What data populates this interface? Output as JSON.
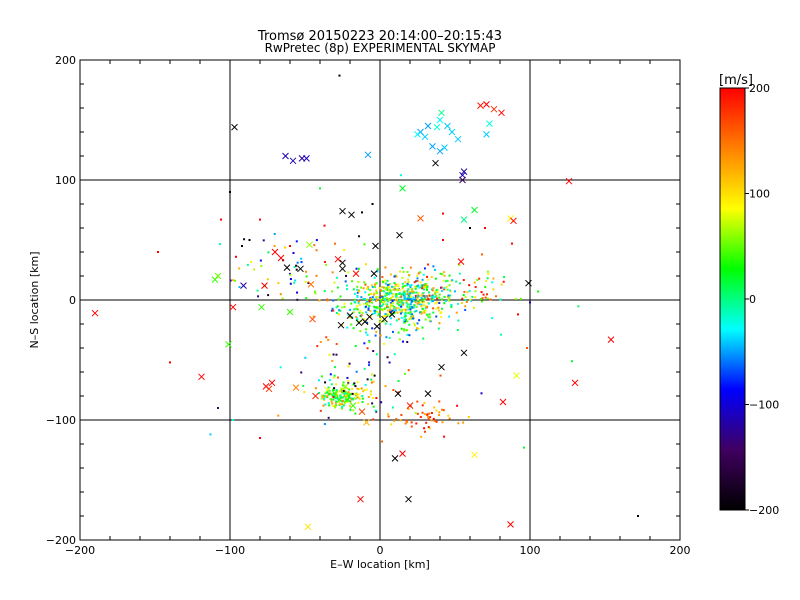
{
  "chart_data": {
    "type": "scatter",
    "title": "Tromsø 20150223 20:14:00–20:15:43",
    "subtitle": "RwPretec (8p) EXPERIMENTAL SKYMAP",
    "xlabel": "E–W location [km]",
    "ylabel": "N–S location [km]",
    "xlim": [
      -200,
      200
    ],
    "ylim": [
      -200,
      200
    ],
    "x_ticks": [
      -200,
      -100,
      0,
      100,
      200
    ],
    "y_ticks": [
      -200,
      -100,
      0,
      100,
      200
    ],
    "x_tick_labels": [
      "−200",
      "−100",
      "0",
      "100",
      "200"
    ],
    "y_tick_labels": [
      "−200",
      "−100",
      "0",
      "100",
      "200"
    ],
    "grid": true,
    "colorbar": {
      "label": "[m/s]",
      "range": [
        -200,
        200
      ],
      "ticks": [
        200,
        100,
        0,
        -100,
        -200
      ],
      "tick_labels": [
        "200",
        "100",
        "0",
        "−100",
        "−200"
      ],
      "colormap": [
        "#000000",
        "#400060",
        "#0000ff",
        "#00ffff",
        "#00ff00",
        "#ffff00",
        "#ff8000",
        "#ff0000"
      ]
    },
    "crosses": [
      {
        "x": -97,
        "y": 144,
        "v": -200
      },
      {
        "x": -63,
        "y": 120,
        "v": -110
      },
      {
        "x": -58,
        "y": 116,
        "v": -110
      },
      {
        "x": -52,
        "y": 118,
        "v": -120
      },
      {
        "x": -49,
        "y": 118,
        "v": -110
      },
      {
        "x": -8,
        "y": 121,
        "v": -50
      },
      {
        "x": 37,
        "y": 114,
        "v": -200
      },
      {
        "x": 56,
        "y": 107,
        "v": -120
      },
      {
        "x": 55,
        "y": 104,
        "v": -110
      },
      {
        "x": 55,
        "y": 100,
        "v": -140
      },
      {
        "x": 27,
        "y": 140,
        "v": -50
      },
      {
        "x": 32,
        "y": 145,
        "v": -50
      },
      {
        "x": 30,
        "y": 136,
        "v": -40
      },
      {
        "x": 25,
        "y": 138,
        "v": -30
      },
      {
        "x": 40,
        "y": 150,
        "v": -30
      },
      {
        "x": 41,
        "y": 156,
        "v": 0
      },
      {
        "x": 38,
        "y": 144,
        "v": -20
      },
      {
        "x": 45,
        "y": 145,
        "v": -40
      },
      {
        "x": 48,
        "y": 140,
        "v": -40
      },
      {
        "x": 52,
        "y": 134,
        "v": -40
      },
      {
        "x": 35,
        "y": 128,
        "v": -50
      },
      {
        "x": 40,
        "y": 124,
        "v": -50
      },
      {
        "x": 43,
        "y": 127,
        "v": -40
      },
      {
        "x": 67,
        "y": 162,
        "v": 190
      },
      {
        "x": 71,
        "y": 163,
        "v": 200
      },
      {
        "x": 76,
        "y": 159,
        "v": 180
      },
      {
        "x": 81,
        "y": 156,
        "v": 200
      },
      {
        "x": 73,
        "y": 147,
        "v": -20
      },
      {
        "x": 71,
        "y": 138,
        "v": -40
      },
      {
        "x": 126,
        "y": 99,
        "v": 200
      },
      {
        "x": 15,
        "y": 93,
        "v": 20
      },
      {
        "x": 63,
        "y": 75,
        "v": 20
      },
      {
        "x": 56,
        "y": 67,
        "v": 0
      },
      {
        "x": 87,
        "y": 68,
        "v": 90
      },
      {
        "x": 89,
        "y": 66,
        "v": 200
      },
      {
        "x": -25,
        "y": 74,
        "v": -200
      },
      {
        "x": -19,
        "y": 71,
        "v": -200
      },
      {
        "x": 13,
        "y": 54,
        "v": -200
      },
      {
        "x": 27,
        "y": 68,
        "v": 160
      },
      {
        "x": -47,
        "y": 46,
        "v": 60
      },
      {
        "x": -70,
        "y": 40,
        "v": 200
      },
      {
        "x": -66,
        "y": 35,
        "v": 200
      },
      {
        "x": -28,
        "y": 34,
        "v": 200
      },
      {
        "x": -25,
        "y": 31,
        "v": -200
      },
      {
        "x": -3,
        "y": 45,
        "v": -200
      },
      {
        "x": 54,
        "y": 32,
        "v": 200
      },
      {
        "x": -62,
        "y": 27,
        "v": -200
      },
      {
        "x": -53,
        "y": 26,
        "v": -200
      },
      {
        "x": -25,
        "y": 26,
        "v": -200
      },
      {
        "x": -16,
        "y": 22,
        "v": 200
      },
      {
        "x": -4,
        "y": 22,
        "v": -200
      },
      {
        "x": 99,
        "y": 14,
        "v": -200
      },
      {
        "x": -110,
        "y": 17,
        "v": 40
      },
      {
        "x": -108,
        "y": 20,
        "v": 50
      },
      {
        "x": -91,
        "y": 12,
        "v": -120
      },
      {
        "x": -77,
        "y": 12,
        "v": 200
      },
      {
        "x": -46,
        "y": 13,
        "v": 150
      },
      {
        "x": -190,
        "y": -11,
        "v": 200
      },
      {
        "x": -98,
        "y": -6,
        "v": 200
      },
      {
        "x": -79,
        "y": -6,
        "v": 40
      },
      {
        "x": -60,
        "y": -10,
        "v": 40
      },
      {
        "x": -45,
        "y": -16,
        "v": 170
      },
      {
        "x": -26,
        "y": -21,
        "v": -200
      },
      {
        "x": -20,
        "y": -13,
        "v": -200
      },
      {
        "x": -14,
        "y": -19,
        "v": -200
      },
      {
        "x": -10,
        "y": -18,
        "v": -200
      },
      {
        "x": -7,
        "y": -14,
        "v": -200
      },
      {
        "x": -2,
        "y": -22,
        "v": -200
      },
      {
        "x": 3,
        "y": -16,
        "v": -200
      },
      {
        "x": 8,
        "y": -12,
        "v": -200
      },
      {
        "x": -101,
        "y": -37,
        "v": 40
      },
      {
        "x": 56,
        "y": -44,
        "v": -200
      },
      {
        "x": 91,
        "y": -63,
        "v": 80
      },
      {
        "x": 154,
        "y": -33,
        "v": 200
      },
      {
        "x": -119,
        "y": -64,
        "v": 200
      },
      {
        "x": -76,
        "y": -72,
        "v": 200
      },
      {
        "x": -72,
        "y": -69,
        "v": 200
      },
      {
        "x": -74,
        "y": -74,
        "v": 180
      },
      {
        "x": -56,
        "y": -73,
        "v": 140
      },
      {
        "x": -43,
        "y": -80,
        "v": 180
      },
      {
        "x": -35,
        "y": -75,
        "v": 80
      },
      {
        "x": -30,
        "y": -78,
        "v": 40
      },
      {
        "x": -27,
        "y": -83,
        "v": 20
      },
      {
        "x": -23,
        "y": -72,
        "v": 60
      },
      {
        "x": -18,
        "y": -88,
        "v": 40
      },
      {
        "x": -15,
        "y": -80,
        "v": 90
      },
      {
        "x": 12,
        "y": -78,
        "v": -200
      },
      {
        "x": 20,
        "y": -88,
        "v": 190
      },
      {
        "x": 32,
        "y": -78,
        "v": -200
      },
      {
        "x": 41,
        "y": -56,
        "v": -200
      },
      {
        "x": 82,
        "y": -85,
        "v": 200
      },
      {
        "x": 130,
        "y": -69,
        "v": 200
      },
      {
        "x": -9,
        "y": -102,
        "v": 120
      },
      {
        "x": -12,
        "y": -93,
        "v": 170
      },
      {
        "x": 10,
        "y": -132,
        "v": -200
      },
      {
        "x": 15,
        "y": -128,
        "v": 200
      },
      {
        "x": 63,
        "y": -129,
        "v": 90
      },
      {
        "x": 19,
        "y": -166,
        "v": -200
      },
      {
        "x": -13,
        "y": -166,
        "v": 200
      },
      {
        "x": -48,
        "y": -189,
        "v": 100
      },
      {
        "x": 87,
        "y": -187,
        "v": 200
      }
    ],
    "dots": [
      {
        "x": -27,
        "y": 187,
        "v": -200
      },
      {
        "x": -100,
        "y": 90,
        "v": -200
      },
      {
        "x": -106,
        "y": 67,
        "v": 200
      },
      {
        "x": -80,
        "y": 67,
        "v": 200
      },
      {
        "x": -37,
        "y": 62,
        "v": 200
      },
      {
        "x": -12,
        "y": 73,
        "v": -200
      },
      {
        "x": -5,
        "y": 80,
        "v": -200
      },
      {
        "x": 42,
        "y": 72,
        "v": 200
      },
      {
        "x": 60,
        "y": 60,
        "v": -200
      },
      {
        "x": 70,
        "y": 60,
        "v": 200
      },
      {
        "x": 14,
        "y": 104,
        "v": -20
      },
      {
        "x": -40,
        "y": 93,
        "v": 20
      },
      {
        "x": -87,
        "y": 50,
        "v": -200
      },
      {
        "x": -92,
        "y": 45,
        "v": -200
      },
      {
        "x": -96,
        "y": 36,
        "v": 200
      },
      {
        "x": -60,
        "y": 45,
        "v": 200
      },
      {
        "x": 42,
        "y": 50,
        "v": 200
      },
      {
        "x": 68,
        "y": 38,
        "v": 160
      },
      {
        "x": 88,
        "y": 47,
        "v": 200
      },
      {
        "x": -148,
        "y": 40,
        "v": 200
      },
      {
        "x": -140,
        "y": -52,
        "v": 200
      },
      {
        "x": -108,
        "y": -90,
        "v": -140
      },
      {
        "x": -98,
        "y": -100,
        "v": -20
      },
      {
        "x": -113,
        "y": -112,
        "v": -40
      },
      {
        "x": -80,
        "y": -115,
        "v": 200
      },
      {
        "x": 96,
        "y": -123,
        "v": 20
      },
      {
        "x": 100,
        "y": -2,
        "v": -110
      },
      {
        "x": 172,
        "y": -180,
        "v": -200
      },
      {
        "x": 128,
        "y": -51,
        "v": 20
      },
      {
        "x": 98,
        "y": -40,
        "v": 160
      },
      {
        "x": 92,
        "y": -12,
        "v": 200
      }
    ],
    "clusters": [
      {
        "cx": 10,
        "cy": -2,
        "rx": 38,
        "ry": 22,
        "n": 560,
        "vmin": -80,
        "vmax": 140,
        "seed": 11
      },
      {
        "cx": 40,
        "cy": 8,
        "rx": 45,
        "ry": 20,
        "n": 160,
        "vmin": -60,
        "vmax": 200,
        "seed": 23
      },
      {
        "cx": -25,
        "cy": -80,
        "rx": 14,
        "ry": 9,
        "n": 160,
        "vmin": -20,
        "vmax": 140,
        "seed": 37
      },
      {
        "cx": 30,
        "cy": -100,
        "rx": 22,
        "ry": 14,
        "n": 55,
        "vmin": 100,
        "vmax": 200,
        "seed": 41
      },
      {
        "cx": -10,
        "cy": -60,
        "rx": 40,
        "ry": 40,
        "n": 90,
        "vmin": -200,
        "vmax": 200,
        "seed": 53
      },
      {
        "cx": -55,
        "cy": 25,
        "rx": 45,
        "ry": 30,
        "n": 70,
        "vmin": -200,
        "vmax": 200,
        "seed": 67
      }
    ]
  }
}
